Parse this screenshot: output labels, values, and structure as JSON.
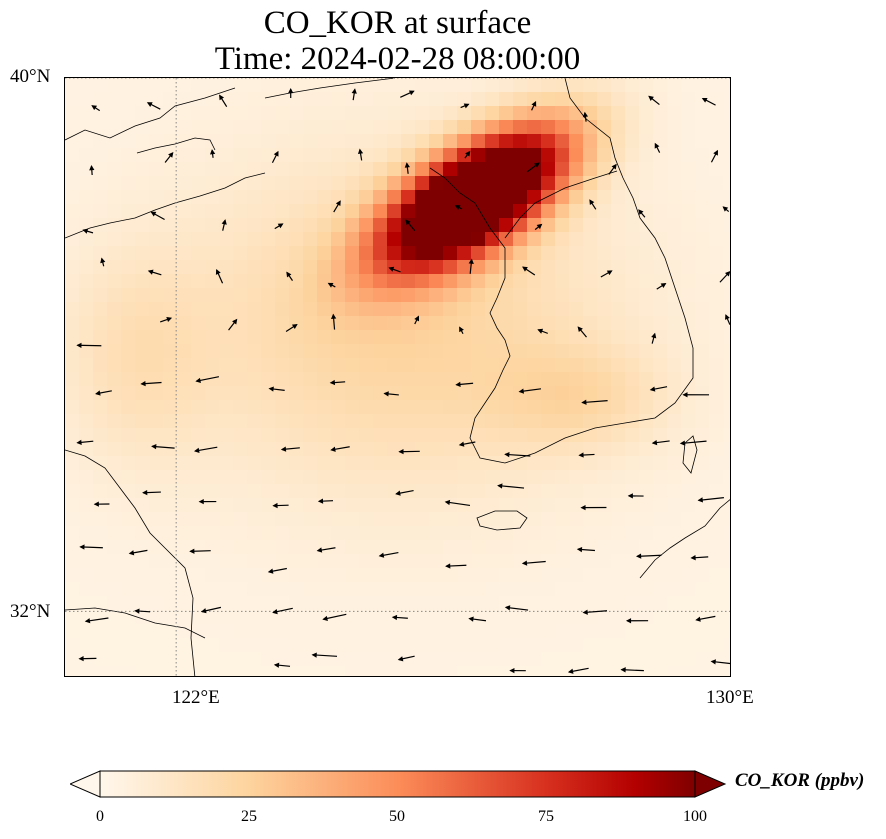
{
  "title": {
    "line1": "CO_KOR at surface",
    "line2": "Time: 2024-02-28 08:00:00"
  },
  "map": {
    "lon_range": [
      120.4,
      130.0
    ],
    "lat_range": [
      31.0,
      40.0
    ],
    "gridlines": "dotted",
    "lon_ticks": [
      {
        "value": 122,
        "label": "122°E"
      },
      {
        "value": 130,
        "label": "130°E"
      }
    ],
    "lat_ticks": [
      {
        "value": 40,
        "label": "40°N"
      },
      {
        "value": 32,
        "label": "32°N"
      }
    ],
    "field": "CO_KOR",
    "field_units": "ppbv",
    "colormap": [
      "#fff7ec",
      "#fdd49e",
      "#fc8d59",
      "#d7301f",
      "#b30000",
      "#7f0000"
    ],
    "plume": {
      "core_center": [
        126.3,
        38.2
      ],
      "core_value": 100,
      "background_value": 3
    },
    "wind_vectors": "shown"
  },
  "colorbar": {
    "label": "CO_KOR (ppbv)",
    "min": 0,
    "max": 100,
    "extend": "both",
    "ticks": [
      "0",
      "25",
      "50",
      "75",
      "100"
    ]
  }
}
